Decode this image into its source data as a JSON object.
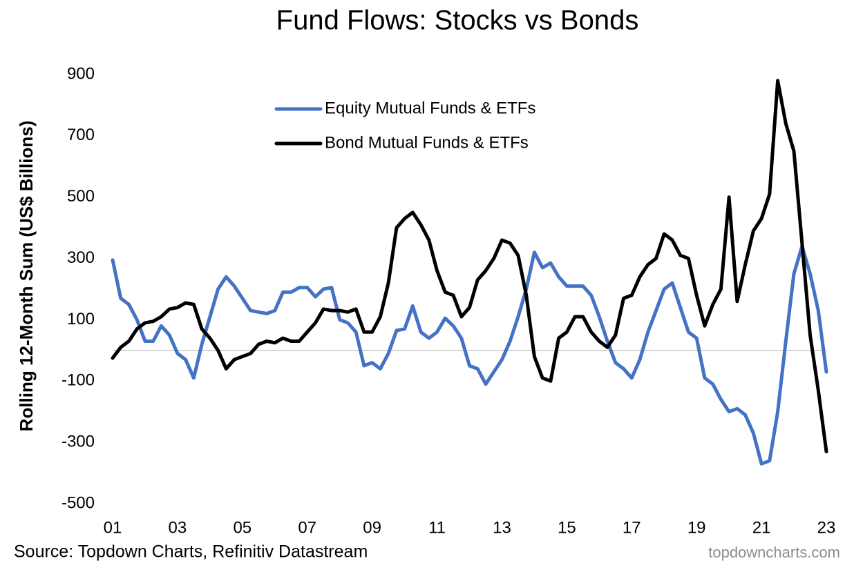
{
  "chart_data": {
    "type": "line",
    "title": "Fund Flows: Stocks vs Bonds",
    "y_label": "Rolling 12-Month Sum (US$ Billions)",
    "source": "Source: Topdown Charts, Refinitiv Datastream",
    "watermark": "topdowncharts.com",
    "legend": "top-left",
    "zero_line": true,
    "xlim": [
      2001,
      2023
    ],
    "xticks": [
      {
        "value": 2001,
        "label": "01"
      },
      {
        "value": 2003,
        "label": "03"
      },
      {
        "value": 2005,
        "label": "05"
      },
      {
        "value": 2007,
        "label": "07"
      },
      {
        "value": 2009,
        "label": "09"
      },
      {
        "value": 2011,
        "label": "11"
      },
      {
        "value": 2013,
        "label": "13"
      },
      {
        "value": 2015,
        "label": "15"
      },
      {
        "value": 2017,
        "label": "17"
      },
      {
        "value": 2019,
        "label": "19"
      },
      {
        "value": 2021,
        "label": "21"
      },
      {
        "value": 2023,
        "label": "23"
      }
    ],
    "ylim": [
      -500,
      900
    ],
    "yticks": [
      -500,
      -300,
      -100,
      100,
      300,
      500,
      700,
      900
    ],
    "x": [
      2001,
      2001.25,
      2001.5,
      2001.75,
      2002,
      2002.25,
      2002.5,
      2002.75,
      2003,
      2003.25,
      2003.5,
      2003.75,
      2004,
      2004.25,
      2004.5,
      2004.75,
      2005,
      2005.25,
      2005.5,
      2005.75,
      2006,
      2006.25,
      2006.5,
      2006.75,
      2007,
      2007.25,
      2007.5,
      2007.75,
      2008,
      2008.25,
      2008.5,
      2008.75,
      2009,
      2009.25,
      2009.5,
      2009.75,
      2010,
      2010.25,
      2010.5,
      2010.75,
      2011,
      2011.25,
      2011.5,
      2011.75,
      2012,
      2012.25,
      2012.5,
      2012.75,
      2013,
      2013.25,
      2013.5,
      2013.75,
      2014,
      2014.25,
      2014.5,
      2014.75,
      2015,
      2015.25,
      2015.5,
      2015.75,
      2016,
      2016.25,
      2016.5,
      2016.75,
      2017,
      2017.25,
      2017.5,
      2017.75,
      2018,
      2018.25,
      2018.5,
      2018.75,
      2019,
      2019.25,
      2019.5,
      2019.75,
      2020,
      2020.25,
      2020.5,
      2020.75,
      2021,
      2021.25,
      2021.5,
      2021.75,
      2022,
      2022.25,
      2022.5,
      2022.75,
      2023
    ],
    "series": [
      {
        "name": "Equity Mutual Funds & ETFs",
        "color": "#4472c4",
        "values": [
          295,
          170,
          150,
          100,
          30,
          30,
          80,
          50,
          -10,
          -30,
          -90,
          20,
          110,
          200,
          240,
          210,
          170,
          130,
          125,
          120,
          130,
          190,
          190,
          205,
          205,
          175,
          200,
          205,
          100,
          90,
          60,
          -50,
          -40,
          -60,
          -10,
          65,
          70,
          145,
          60,
          40,
          60,
          105,
          80,
          40,
          -50,
          -60,
          -110,
          -70,
          -30,
          30,
          110,
          200,
          320,
          270,
          285,
          240,
          210,
          210,
          210,
          180,
          110,
          30,
          -40,
          -60,
          -90,
          -30,
          60,
          130,
          200,
          220,
          140,
          60,
          40,
          -90,
          -110,
          -160,
          -200,
          -190,
          -210,
          -270,
          -370,
          -360,
          -200,
          30,
          250,
          340,
          250,
          130,
          -70
        ]
      },
      {
        "name": "Bond Mutual Funds & ETFs",
        "color": "#000000",
        "values": [
          -25,
          10,
          30,
          70,
          90,
          95,
          110,
          135,
          140,
          155,
          150,
          70,
          40,
          0,
          -60,
          -30,
          -20,
          -10,
          20,
          30,
          25,
          40,
          30,
          30,
          60,
          90,
          135,
          130,
          130,
          125,
          135,
          60,
          60,
          110,
          220,
          400,
          430,
          450,
          410,
          360,
          260,
          190,
          180,
          110,
          140,
          230,
          260,
          300,
          360,
          350,
          310,
          180,
          -20,
          -90,
          -100,
          40,
          60,
          110,
          110,
          60,
          30,
          10,
          50,
          170,
          180,
          240,
          280,
          300,
          380,
          360,
          310,
          300,
          180,
          80,
          150,
          200,
          500,
          160,
          280,
          390,
          430,
          510,
          880,
          740,
          650,
          350,
          50,
          -130,
          -330
        ]
      }
    ]
  }
}
